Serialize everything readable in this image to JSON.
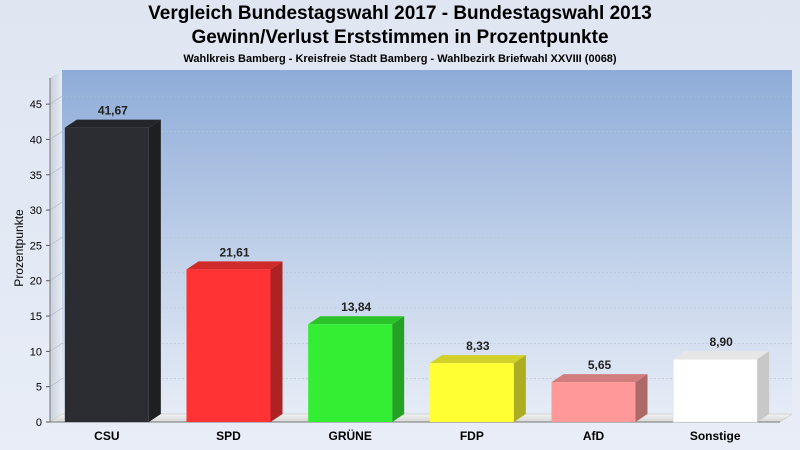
{
  "chart_data": {
    "type": "bar",
    "title": "Vergleich Bundestagswahl 2017 - Bundestagswahl 2013",
    "title2": "Gewinn/Verlust Erststimmen in Prozentpunkte",
    "subtitle": "Wahlkreis Bamberg - Kreisfreie Stadt Bamberg - Wahlbezirk Briefwahl XXVIII (0068)",
    "ylabel": "Prozentpunkte",
    "xlabel": "",
    "ylim": [
      0,
      47
    ],
    "yticks": [
      0,
      5,
      10,
      15,
      20,
      25,
      30,
      35,
      40,
      45
    ],
    "categories": [
      "CSU",
      "SPD",
      "GRÜNE",
      "FDP",
      "AfD",
      "Sonstige"
    ],
    "values": [
      41.67,
      21.61,
      13.84,
      8.33,
      5.65,
      8.9
    ],
    "value_labels": [
      "41,67",
      "21,61",
      "13,84",
      "8,33",
      "5,65",
      "8,90"
    ],
    "colors": [
      "#2b2d33",
      "#ff3333",
      "#33ee33",
      "#ffff33",
      "#ff9999",
      "#ffffff"
    ],
    "grid": true
  }
}
